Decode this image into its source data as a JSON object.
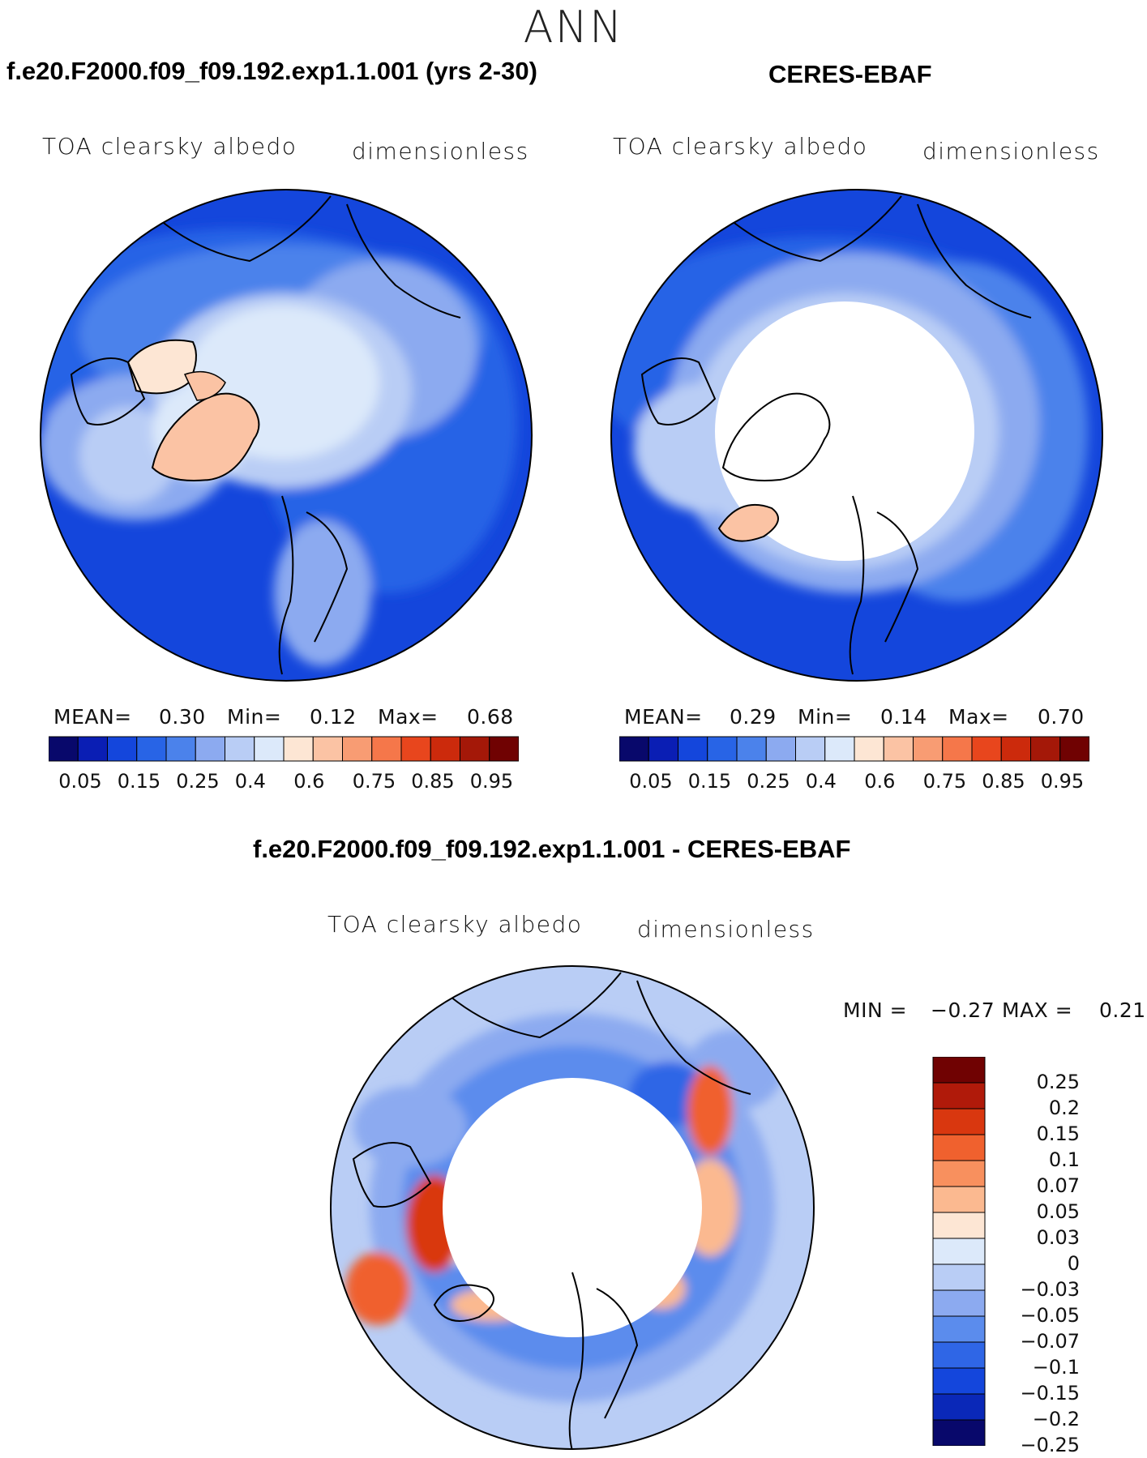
{
  "figure": {
    "season": "ANN"
  },
  "panels": [
    {
      "title": "f.e20.F2000.f09_f09.192.exp1.1.001 (yrs 2-30)",
      "variable": "TOA clearsky albedo",
      "units": "dimensionless",
      "stats": {
        "mean_label": "MEAN=",
        "mean": "0.30",
        "min_label": "Min=",
        "min": "0.12",
        "max_label": "Max=",
        "max": "0.68"
      }
    },
    {
      "title": "CERES-EBAF",
      "variable": "TOA clearsky albedo",
      "units": "dimensionless",
      "stats": {
        "mean_label": "MEAN=",
        "mean": "0.29",
        "min_label": "Min=",
        "min": "0.14",
        "max_label": "Max=",
        "max": "0.70"
      }
    },
    {
      "title": "f.e20.F2000.f09_f09.192.exp1.1.001 - CERES-EBAF",
      "variable": "TOA clearsky albedo",
      "units": "dimensionless",
      "stats": {
        "min_label": "MIN =",
        "min": "−0.27",
        "max_label": "MAX =",
        "max": "0.21"
      }
    }
  ],
  "colorbars": {
    "abs": {
      "colors": [
        "#08086b",
        "#0a1eb4",
        "#1446dc",
        "#2864e6",
        "#4b82eb",
        "#8caaf0",
        "#b9cdf5",
        "#dce9fa",
        "#fde6d4",
        "#fbc3a4",
        "#f89c73",
        "#f5774a",
        "#e8461d",
        "#cc2a0c",
        "#a41808",
        "#700202"
      ],
      "labels": [
        "0.05",
        "0.15",
        "0.25",
        "0.4",
        "0.6",
        "0.75",
        "0.85",
        "0.95"
      ]
    },
    "diff": {
      "colors": [
        "#700202",
        "#b01a0a",
        "#d9370f",
        "#f0612e",
        "#f8905e",
        "#fbb990",
        "#fde6d4",
        "#dce9fa",
        "#b9cdf5",
        "#8caaf0",
        "#5b8ced",
        "#2f66e6",
        "#1446dc",
        "#0a28b8",
        "#08086b"
      ],
      "labels": [
        "0.25",
        "0.2",
        "0.15",
        "0.1",
        "0.07",
        "0.05",
        "0.03",
        "0",
        "−0.03",
        "−0.05",
        "−0.07",
        "−0.1",
        "−0.15",
        "−0.2",
        "−0.25"
      ]
    }
  }
}
